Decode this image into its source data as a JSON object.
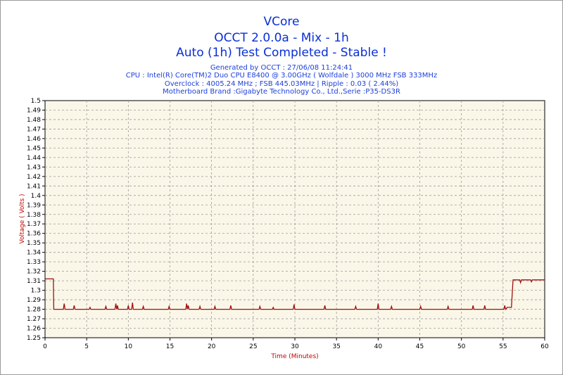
{
  "chart_data": {
    "type": "line",
    "title": "VCore",
    "subtitle": "OCCT 2.0.0a - Mix - 1h",
    "status": "Auto (1h) Test Completed - Stable !",
    "info": [
      "Generated by OCCT : 27/06/08 11:24:41",
      "CPU : Intel(R) Core(TM)2 Duo CPU E8400 @ 3.00GHz ( Wolfdale ) 3000 MHz FSB 333MHz",
      "Overclock : 4005.24 MHz ; FSB 445.03MHz | Ripple : 0.03 ( 2.44%)",
      "Motherboard Brand :Gigabyte Technology Co., Ltd.,Serie :P35-DS3R"
    ],
    "xlabel": "Time (Minutes)",
    "ylabel": "Voltage ( Volts )",
    "xlim": [
      0,
      60
    ],
    "ylim": [
      1.25,
      1.5
    ],
    "x_ticks": [
      "0",
      "5",
      "10",
      "15",
      "20",
      "25",
      "30",
      "35",
      "40",
      "45",
      "50",
      "55",
      "60"
    ],
    "y_ticks": [
      "1.25",
      "1.26",
      "1.27",
      "1.28",
      "1.29",
      "1.3",
      "1.31",
      "1.32",
      "1.33",
      "1.34",
      "1.35",
      "1.36",
      "1.37",
      "1.38",
      "1.39",
      "1.4",
      "1.41",
      "1.42",
      "1.43",
      "1.44",
      "1.45",
      "1.46",
      "1.47",
      "1.48",
      "1.49",
      "1.5"
    ],
    "grid": true,
    "colors": {
      "line": "#a01010",
      "plot_bg": "#fbf7e8",
      "title": "#0a2fd6",
      "axis_label": "#c00000"
    },
    "series": [
      {
        "x": [
          0,
          1.0,
          1.05,
          2.2,
          2.3,
          2.4,
          3.4,
          3.5,
          3.6,
          5.3,
          5.4,
          5.5,
          7.2,
          7.3,
          7.4,
          8.4,
          8.5,
          8.6,
          8.7,
          8.8,
          9.9,
          10.0,
          10.1,
          10.4,
          10.5,
          10.6,
          11.7,
          11.8,
          11.9,
          14.8,
          14.9,
          15.0,
          16.9,
          17.0,
          17.1,
          17.2,
          17.3,
          18.5,
          18.6,
          18.7,
          20.3,
          20.4,
          20.5,
          22.2,
          22.3,
          22.4,
          25.7,
          25.8,
          25.9,
          27.3,
          27.4,
          27.5,
          29.8,
          29.9,
          30.0,
          33.5,
          33.6,
          33.7,
          37.2,
          37.3,
          37.4,
          39.9,
          40.0,
          40.1,
          41.5,
          41.6,
          41.7,
          45.0,
          45.1,
          45.2,
          48.3,
          48.4,
          48.5,
          51.3,
          51.4,
          51.5,
          52.7,
          52.8,
          52.9,
          55.1,
          55.2,
          55.3,
          55.5,
          56.0,
          56.2,
          57.0,
          57.1,
          57.2,
          58.3,
          58.4,
          58.5,
          60.0
        ],
        "values": [
          1.312,
          1.312,
          1.28,
          1.28,
          1.286,
          1.28,
          1.28,
          1.284,
          1.28,
          1.28,
          1.282,
          1.28,
          1.28,
          1.283,
          1.28,
          1.28,
          1.286,
          1.28,
          1.284,
          1.28,
          1.28,
          1.284,
          1.28,
          1.28,
          1.287,
          1.28,
          1.28,
          1.283,
          1.28,
          1.28,
          1.283,
          1.28,
          1.28,
          1.286,
          1.28,
          1.284,
          1.28,
          1.28,
          1.283,
          1.28,
          1.28,
          1.283,
          1.28,
          1.28,
          1.284,
          1.28,
          1.28,
          1.283,
          1.28,
          1.28,
          1.282,
          1.28,
          1.28,
          1.285,
          1.28,
          1.28,
          1.284,
          1.28,
          1.28,
          1.283,
          1.28,
          1.28,
          1.286,
          1.28,
          1.28,
          1.283,
          1.28,
          1.28,
          1.283,
          1.28,
          1.28,
          1.283,
          1.28,
          1.28,
          1.284,
          1.28,
          1.28,
          1.284,
          1.28,
          1.28,
          1.284,
          1.28,
          1.282,
          1.282,
          1.311,
          1.311,
          1.308,
          1.311,
          1.311,
          1.309,
          1.311,
          1.311
        ]
      }
    ]
  }
}
